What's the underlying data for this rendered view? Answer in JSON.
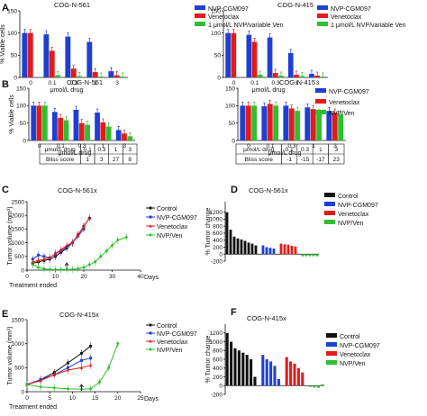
{
  "chart_data": [
    {
      "id": "A1",
      "panel_letter": "A",
      "type": "bar",
      "title": "COG-N-561",
      "ylabel": "% Viable cells",
      "xlabel": "μmol/L drug",
      "categories": [
        "0",
        "0.1",
        "0.3",
        "1",
        "3"
      ],
      "ylim": [
        0,
        150
      ],
      "yticks": [
        0,
        50,
        100,
        150
      ],
      "series": [
        {
          "name": "NVP-CGM097",
          "color": "#1f3fd1",
          "values": [
            100,
            97,
            92,
            80,
            14
          ]
        },
        {
          "name": "Venetoclax",
          "color": "#e21b1b",
          "values": [
            100,
            60,
            20,
            12,
            5
          ]
        },
        {
          "name": "1 μmol/L NVP/variable Ven",
          "color": "#2fbf2f",
          "values": [
            null,
            5,
            3,
            2,
            2
          ]
        }
      ]
    },
    {
      "id": "A2",
      "type": "bar",
      "title": "COG-N-415",
      "ylabel": "",
      "xlabel": "μmol/L drug",
      "categories": [
        "0",
        "0.1",
        "0.3",
        "1",
        "3"
      ],
      "ylim": [
        0,
        150
      ],
      "yticks": [
        0,
        50,
        100,
        150
      ],
      "series": [
        {
          "name": "NVP-CGM097",
          "color": "#1f3fd1",
          "values": [
            100,
            96,
            90,
            55,
            8
          ]
        },
        {
          "name": "Venetoclax",
          "color": "#e21b1b",
          "values": [
            100,
            80,
            10,
            6,
            4
          ]
        },
        {
          "name": "1 μmol/L NVP/variable Ven",
          "color": "#2fbf2f",
          "values": [
            null,
            6,
            4,
            3,
            2
          ]
        }
      ]
    },
    {
      "id": "B1",
      "panel_letter": "B",
      "type": "bar",
      "title": "COG-N-561",
      "ylabel": "% Viable cells",
      "xlabel": "μmol/L drug",
      "categories": [
        "0",
        "0.1",
        "0.3",
        "1",
        "3"
      ],
      "ylim": [
        0,
        150
      ],
      "yticks": [
        0,
        50,
        100,
        150
      ],
      "series": [
        {
          "name": "NVP-CGM097",
          "color": "#1f3fd1",
          "values": [
            100,
            82,
            88,
            80,
            30
          ]
        },
        {
          "name": "Venetoclax",
          "color": "#e21b1b",
          "values": [
            100,
            65,
            50,
            52,
            20
          ]
        },
        {
          "name": "NVP/Ven",
          "color": "#2fbf2f",
          "values": [
            100,
            58,
            45,
            40,
            12
          ]
        }
      ],
      "table": {
        "rows": [
          [
            "μmol/L drug",
            "0.1",
            "0.3",
            "1",
            "3"
          ],
          [
            "Bliss score",
            "1",
            "3",
            "27",
            "8"
          ]
        ]
      }
    },
    {
      "id": "B2",
      "type": "bar",
      "title": "COG-N-415",
      "ylabel": "",
      "xlabel": "μmol/L drug",
      "categories": [
        "0",
        "0.1",
        "0.3",
        "1",
        "3"
      ],
      "ylim": [
        0,
        150
      ],
      "yticks": [
        0,
        50,
        100,
        150
      ],
      "series": [
        {
          "name": "NVP-CGM097",
          "color": "#1f3fd1",
          "values": [
            100,
            98,
            100,
            95,
            85
          ]
        },
        {
          "name": "Venetoclax",
          "color": "#e21b1b",
          "values": [
            100,
            105,
            92,
            90,
            80
          ]
        },
        {
          "name": "NVP/Ven",
          "color": "#2fbf2f",
          "values": [
            100,
            100,
            85,
            78,
            75
          ]
        }
      ],
      "table": {
        "rows": [
          [
            "μmol/L drug",
            "0.1",
            "0.3",
            "1",
            "3"
          ],
          [
            "Bliss score",
            "-1",
            "-15",
            "-17",
            "23"
          ]
        ]
      }
    },
    {
      "id": "C",
      "panel_letter": "C",
      "type": "line",
      "title": "COG-N-561x",
      "ylabel": "Tumor volume (mm³)",
      "xlabel": "Days",
      "xlim": [
        0,
        40
      ],
      "xticks": [
        0,
        10,
        20,
        30,
        40
      ],
      "ylim": [
        0,
        2500
      ],
      "yticks": [
        0,
        500,
        1000,
        1500,
        2000,
        2500
      ],
      "annotation": "Treatment ended",
      "series": [
        {
          "name": "Control",
          "color": "#111111",
          "marker": "circle",
          "points": [
            [
              2,
              250
            ],
            [
              4,
              300
            ],
            [
              6,
              350
            ],
            [
              8,
              400
            ],
            [
              10,
              500
            ],
            [
              12,
              650
            ],
            [
              14,
              800
            ],
            [
              16,
              1000
            ],
            [
              18,
              1300
            ],
            [
              20,
              1600
            ],
            [
              22,
              1900
            ]
          ]
        },
        {
          "name": "NVP-CGM097",
          "color": "#1f3fd1",
          "marker": "square",
          "points": [
            [
              2,
              400
            ],
            [
              4,
              550
            ],
            [
              6,
              500
            ],
            [
              8,
              450
            ],
            [
              10,
              600
            ],
            [
              12,
              700
            ],
            [
              14,
              850
            ],
            [
              16,
              1000
            ],
            [
              18,
              1250
            ],
            [
              20,
              1500
            ]
          ]
        },
        {
          "name": "Venetoclax",
          "color": "#e21b1b",
          "marker": "triangle",
          "points": [
            [
              2,
              300
            ],
            [
              4,
              350
            ],
            [
              6,
              400
            ],
            [
              8,
              450
            ],
            [
              10,
              600
            ],
            [
              12,
              750
            ],
            [
              14,
              900
            ],
            [
              16,
              1000
            ],
            [
              18,
              1300
            ],
            [
              20,
              1600
            ],
            [
              22,
              1900
            ]
          ]
        },
        {
          "name": "NVP/Ven",
          "color": "#2fbf2f",
          "marker": "diamond",
          "points": [
            [
              2,
              200
            ],
            [
              4,
              100
            ],
            [
              6,
              50
            ],
            [
              8,
              30
            ],
            [
              10,
              20
            ],
            [
              12,
              20
            ],
            [
              14,
              20
            ],
            [
              16,
              30
            ],
            [
              18,
              50
            ],
            [
              20,
              100
            ],
            [
              22,
              200
            ],
            [
              24,
              300
            ],
            [
              26,
              500
            ],
            [
              28,
              700
            ],
            [
              30,
              900
            ],
            [
              32,
              1100
            ],
            [
              35,
              1200
            ]
          ]
        }
      ]
    },
    {
      "id": "D",
      "panel_letter": "D",
      "type": "bar",
      "title": "COG-N-561x",
      "ylabel": "% Tumor change",
      "ylim": [
        -200,
        1500
      ],
      "yticks": [
        -200,
        0,
        200,
        400,
        600,
        800,
        1000,
        1200
      ],
      "series": [
        {
          "name": "Control",
          "color": "#111111",
          "values": [
            1200,
            700,
            500,
            450,
            420,
            380,
            330,
            300,
            250
          ]
        },
        {
          "name": "NVP-CGM097",
          "color": "#1f3fd1",
          "values": [
            250,
            200,
            180,
            160
          ]
        },
        {
          "name": "Venetoclax",
          "color": "#e21b1b",
          "values": [
            300,
            280,
            270,
            240,
            220
          ]
        },
        {
          "name": "NVP/Ven",
          "color": "#2fbf2f",
          "values": [
            -60,
            -60,
            -60,
            -60,
            -60
          ]
        }
      ]
    },
    {
      "id": "E",
      "panel_letter": "E",
      "type": "line",
      "title": "COG-N-415x",
      "ylabel": "Tumor volume (mm³)",
      "xlabel": "Days",
      "xlim": [
        0,
        25
      ],
      "xticks": [
        0,
        5,
        10,
        15,
        20,
        25
      ],
      "ylim": [
        0,
        1500
      ],
      "yticks": [
        0,
        500,
        1000,
        1500
      ],
      "annotation": "Treatment ended",
      "series": [
        {
          "name": "Control",
          "color": "#111111",
          "marker": "circle",
          "points": [
            [
              0,
              150
            ],
            [
              3,
              250
            ],
            [
              6,
              400
            ],
            [
              9,
              600
            ],
            [
              12,
              800
            ],
            [
              14,
              950
            ]
          ]
        },
        {
          "name": "NVP-CGM097",
          "color": "#1f3fd1",
          "marker": "square",
          "points": [
            [
              0,
              150
            ],
            [
              3,
              250
            ],
            [
              6,
              350
            ],
            [
              9,
              500
            ],
            [
              12,
              650
            ],
            [
              14,
              700
            ]
          ]
        },
        {
          "name": "Venetoclax",
          "color": "#e21b1b",
          "marker": "triangle",
          "points": [
            [
              0,
              150
            ],
            [
              3,
              230
            ],
            [
              6,
              350
            ],
            [
              9,
              450
            ],
            [
              12,
              500
            ],
            [
              14,
              550
            ]
          ]
        },
        {
          "name": "NVP/Ven",
          "color": "#2fbf2f",
          "marker": "diamond",
          "points": [
            [
              0,
              150
            ],
            [
              3,
              100
            ],
            [
              6,
              80
            ],
            [
              9,
              60
            ],
            [
              12,
              50
            ],
            [
              14,
              60
            ],
            [
              16,
              200
            ],
            [
              18,
              500
            ],
            [
              20,
              1000
            ]
          ]
        }
      ]
    },
    {
      "id": "F",
      "panel_letter": "F",
      "type": "bar",
      "title": "COG-N-415x",
      "ylabel": "% Tumor change",
      "ylim": [
        -200,
        1400
      ],
      "yticks": [
        -200,
        0,
        200,
        400,
        600,
        800,
        1000,
        1200
      ],
      "series": [
        {
          "name": "Control",
          "color": "#111111",
          "values": [
            1200,
            1000,
            850,
            800,
            750,
            700,
            600,
            200
          ]
        },
        {
          "name": "NVP-CGM097",
          "color": "#1f3fd1",
          "values": [
            700,
            600,
            550,
            450,
            150
          ]
        },
        {
          "name": "Venetoclax",
          "color": "#e21b1b",
          "values": [
            650,
            550,
            500,
            400,
            300
          ]
        },
        {
          "name": "NVP/Ven",
          "color": "#2fbf2f",
          "values": [
            -30,
            -40,
            -50,
            30
          ]
        }
      ]
    }
  ]
}
